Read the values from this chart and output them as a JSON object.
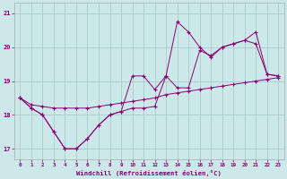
{
  "background_color": "#cce8e8",
  "grid_color": "#aacccc",
  "line_color": "#880077",
  "x": [
    0,
    1,
    2,
    3,
    4,
    5,
    6,
    7,
    8,
    9,
    10,
    11,
    12,
    13,
    14,
    15,
    16,
    17,
    18,
    19,
    20,
    21,
    22,
    23
  ],
  "y_linear": [
    18.5,
    18.3,
    18.25,
    18.2,
    18.2,
    18.2,
    18.2,
    18.25,
    18.3,
    18.35,
    18.4,
    18.45,
    18.5,
    18.6,
    18.65,
    18.7,
    18.75,
    18.8,
    18.85,
    18.9,
    18.95,
    19.0,
    19.05,
    19.1
  ],
  "y_mid": [
    18.5,
    18.2,
    18.0,
    17.5,
    17.0,
    17.0,
    17.3,
    17.7,
    18.0,
    18.1,
    18.2,
    18.2,
    18.25,
    19.15,
    18.8,
    18.8,
    19.9,
    19.75,
    20.0,
    20.1,
    20.2,
    20.1,
    19.2,
    19.15
  ],
  "y_high": [
    18.5,
    18.2,
    18.0,
    17.5,
    17.0,
    17.0,
    17.3,
    17.7,
    18.0,
    18.1,
    19.15,
    19.15,
    18.75,
    19.15,
    20.75,
    20.45,
    20.0,
    19.7,
    20.0,
    20.1,
    20.2,
    20.45,
    19.2,
    19.15
  ],
  "xlim": [
    -0.5,
    23.5
  ],
  "ylim": [
    16.7,
    21.3
  ],
  "xlabel": "Windchill (Refroidissement éolien,°C)",
  "yticks": [
    17,
    18,
    19,
    20,
    21
  ],
  "xticks": [
    0,
    1,
    2,
    3,
    4,
    5,
    6,
    7,
    8,
    9,
    10,
    11,
    12,
    13,
    14,
    15,
    16,
    17,
    18,
    19,
    20,
    21,
    22,
    23
  ]
}
